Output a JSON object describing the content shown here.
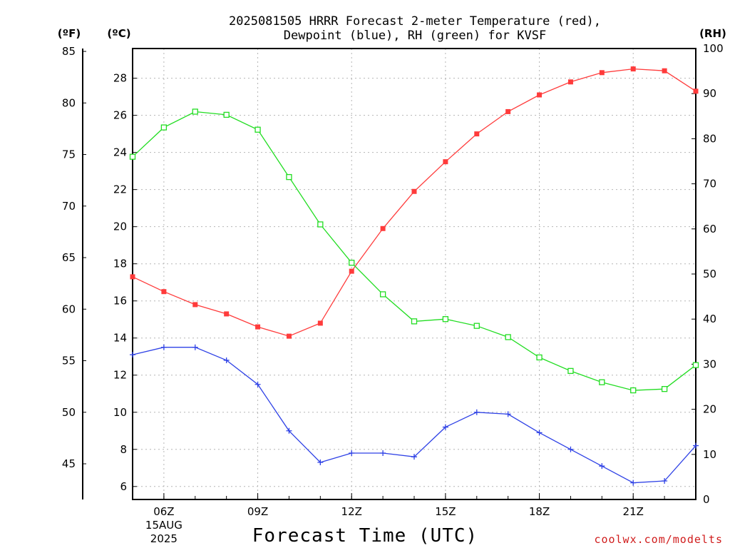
{
  "chart_data": {
    "type": "line",
    "title_line1": "2025081505 HRRR Forecast 2-meter Temperature (red),",
    "title_line2": "Dewpoint (blue), RH (green) for KVSF",
    "xlabel": "Forecast Time (UTC)",
    "credit": "coolwx.com/modelts",
    "units": {
      "fahrenheit": "(ºF)",
      "celsius": "(ºC)",
      "rh": "(RH)"
    },
    "x": [
      5,
      6,
      7,
      8,
      9,
      10,
      11,
      12,
      13,
      14,
      15,
      16,
      17,
      18,
      19,
      20,
      21,
      22,
      23
    ],
    "xlim": [
      5,
      23
    ],
    "x_ticks": [
      {
        "x": 6,
        "label": "06Z",
        "sub1": "15AUG",
        "sub2": "2025"
      },
      {
        "x": 9,
        "label": "09Z"
      },
      {
        "x": 12,
        "label": "12Z"
      },
      {
        "x": 15,
        "label": "15Z"
      },
      {
        "x": 18,
        "label": "18Z"
      },
      {
        "x": 21,
        "label": "21Z"
      }
    ],
    "celsius_axis": {
      "ylim": [
        5.3,
        29.6
      ],
      "ticks": [
        6,
        8,
        10,
        12,
        14,
        16,
        18,
        20,
        22,
        24,
        26,
        28
      ]
    },
    "fahrenheit_axis": {
      "ticks": [
        45,
        50,
        55,
        60,
        65,
        70,
        75,
        80,
        85
      ]
    },
    "rh_axis": {
      "ylim": [
        0,
        100
      ],
      "ticks": [
        0,
        10,
        20,
        30,
        40,
        50,
        60,
        70,
        80,
        90,
        100
      ]
    },
    "grid": true,
    "series": [
      {
        "name": "Temperature",
        "axis": "celsius",
        "color": "#ff3b3b",
        "marker": "filled-square",
        "values": [
          17.3,
          16.5,
          15.8,
          15.3,
          14.6,
          14.1,
          14.8,
          17.6,
          19.9,
          21.9,
          23.5,
          25.0,
          26.2,
          27.1,
          27.8,
          28.3,
          28.5,
          28.4,
          27.3
        ]
      },
      {
        "name": "Dewpoint",
        "axis": "celsius",
        "color": "#2f42e6",
        "marker": "plus",
        "values": [
          13.1,
          13.5,
          13.5,
          12.8,
          11.5,
          9.0,
          7.3,
          7.8,
          7.8,
          7.6,
          9.2,
          10.0,
          9.9,
          8.9,
          8.0,
          7.1,
          6.2,
          6.3,
          8.2
        ]
      },
      {
        "name": "RH",
        "axis": "rh",
        "color": "#22dd22",
        "marker": "open-square",
        "values": [
          76,
          82.5,
          86,
          85.3,
          82,
          71.5,
          61,
          52.5,
          45.5,
          39.5,
          40,
          38.5,
          36,
          31.5,
          28.5,
          26,
          24.2,
          24.5,
          29.8
        ]
      }
    ]
  }
}
